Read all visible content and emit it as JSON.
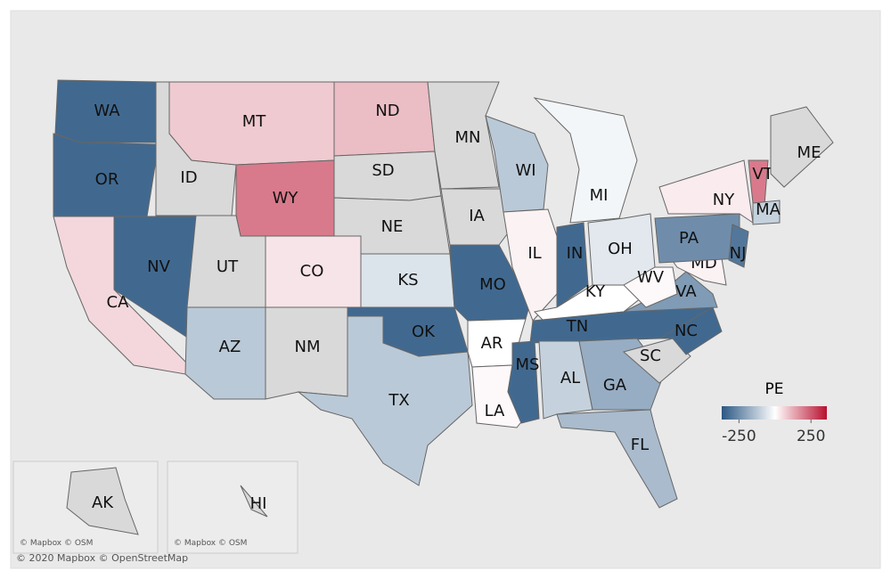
{
  "map": {
    "legend_title": "PE",
    "color_scale": {
      "lim": [
        -370,
        360
      ],
      "ticks": [
        -250,
        250
      ],
      "low": "#2a5783",
      "mid": "#ffffff",
      "high": "#b8102e",
      "null_color": "#d9d9d9"
    },
    "states": [
      {
        "label": "WA",
        "value": -330
      },
      {
        "label": "OR",
        "value": -330
      },
      {
        "label": "CA",
        "value": 60
      },
      {
        "label": "NV",
        "value": -330
      },
      {
        "label": "ID",
        "value": null
      },
      {
        "label": "MT",
        "value": 80
      },
      {
        "label": "WY",
        "value": 200
      },
      {
        "label": "UT",
        "value": null
      },
      {
        "label": "AZ",
        "value": -120
      },
      {
        "label": "CO",
        "value": 40
      },
      {
        "label": "NM",
        "value": null
      },
      {
        "label": "ND",
        "value": 100
      },
      {
        "label": "SD",
        "value": null
      },
      {
        "label": "NE",
        "value": null
      },
      {
        "label": "KS",
        "value": -60
      },
      {
        "label": "OK",
        "value": -330
      },
      {
        "label": "TX",
        "value": -120
      },
      {
        "label": "MN",
        "value": null
      },
      {
        "label": "IA",
        "value": null
      },
      {
        "label": "MO",
        "value": -330
      },
      {
        "label": "AR",
        "value": 0
      },
      {
        "label": "LA",
        "value": 10
      },
      {
        "label": "WI",
        "value": -120
      },
      {
        "label": "IL",
        "value": 20
      },
      {
        "label": "MI",
        "value": -20
      },
      {
        "label": "IN",
        "value": -330
      },
      {
        "label": "OH",
        "value": -50
      },
      {
        "label": "KY",
        "value": 0
      },
      {
        "label": "TN",
        "value": -330
      },
      {
        "label": "MS",
        "value": -330
      },
      {
        "label": "AL",
        "value": -100
      },
      {
        "label": "GA",
        "value": -180
      },
      {
        "label": "FL",
        "value": -150
      },
      {
        "label": "SC",
        "value": null
      },
      {
        "label": "NC",
        "value": -330
      },
      {
        "label": "VA",
        "value": -220
      },
      {
        "label": "WV",
        "value": 10
      },
      {
        "label": "MD",
        "value": 20
      },
      {
        "label": "PA",
        "value": -250
      },
      {
        "label": "NJ",
        "value": -300
      },
      {
        "label": "NY",
        "value": 30
      },
      {
        "label": "VT",
        "value": 200
      },
      {
        "label": "MA",
        "value": -100
      },
      {
        "label": "ME",
        "value": null
      },
      {
        "label": "AK",
        "value": null
      },
      {
        "label": "HI",
        "value": null
      }
    ]
  },
  "attribution": {
    "alaska": "© Mapbox © OSM",
    "hawaii": "© Mapbox © OSM",
    "main": "© 2020 Mapbox © OpenStreetMap"
  }
}
